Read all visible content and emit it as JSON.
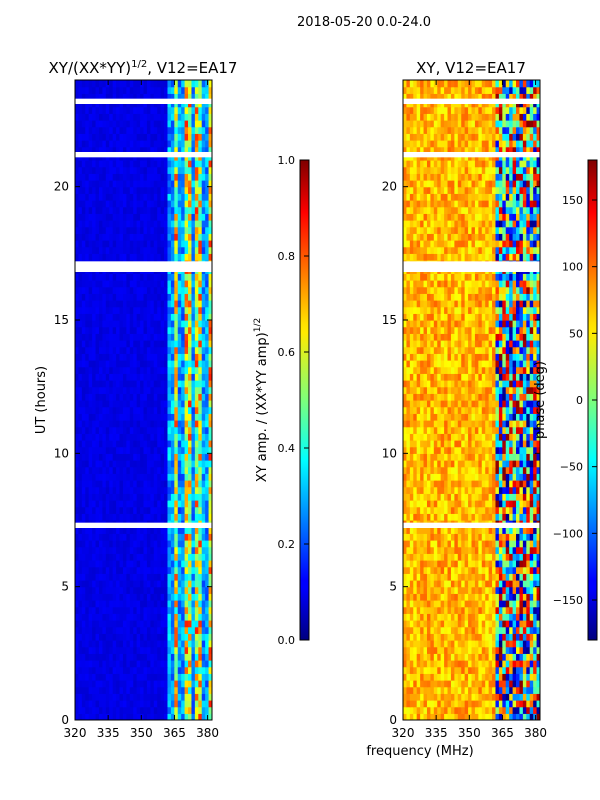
{
  "suptitle": "2018-05-20 0.0-24.0",
  "chart_data": [
    {
      "type": "heatmap",
      "title": "XY/(XX*YY)",
      "title_exponent": "1/2",
      "title_suffix": ", V12=EA17",
      "xlabel": "",
      "ylabel": "UT (hours)",
      "x_ticks": [
        "320",
        "335",
        "350",
        "365",
        "380"
      ],
      "x_tick_values": [
        320,
        335,
        350,
        365,
        380
      ],
      "y_ticks": [
        "0",
        "5",
        "10",
        "15",
        "20"
      ],
      "y_tick_values": [
        0,
        5,
        10,
        15,
        20
      ],
      "xlim": [
        320,
        382
      ],
      "ylim": [
        0,
        24
      ],
      "colorbar": {
        "label": "XY amp. / (XX*YY amp)",
        "label_exponent": "1/2",
        "ticks": [
          "0.0",
          "0.2",
          "0.4",
          "0.6",
          "0.8",
          "1.0"
        ],
        "tick_values": [
          0.0,
          0.2,
          0.4,
          0.6,
          0.8,
          1.0
        ],
        "range": [
          0.0,
          1.0
        ],
        "colormap": "jet"
      },
      "bright_band_mhz": [
        362,
        382
      ],
      "bright_subbands_mhz": [
        [
          364.5,
          367
        ],
        [
          369,
          372
        ],
        [
          375,
          378
        ],
        [
          380,
          382
        ]
      ],
      "gap_bands_ut": [
        [
          7.2,
          7.4
        ],
        [
          16.8,
          17.2
        ],
        [
          21.1,
          21.3
        ],
        [
          23.1,
          23.3
        ]
      ]
    },
    {
      "type": "heatmap",
      "title": "XY, V12=EA17",
      "xlabel": "frequency (MHz)",
      "ylabel": "",
      "x_ticks": [
        "320",
        "335",
        "350",
        "365",
        "380"
      ],
      "x_tick_values": [
        320,
        335,
        350,
        365,
        380
      ],
      "y_ticks": [
        "0",
        "5",
        "10",
        "15",
        "20"
      ],
      "y_tick_values": [
        0,
        5,
        10,
        15,
        20
      ],
      "xlim": [
        320,
        382
      ],
      "ylim": [
        0,
        24
      ],
      "colorbar": {
        "label": "phase (deg)",
        "ticks": [
          "−150",
          "−100",
          "−50",
          "0",
          "50",
          "100",
          "150"
        ],
        "tick_values": [
          -150,
          -100,
          -50,
          0,
          50,
          100,
          150
        ],
        "range": [
          -180,
          180
        ],
        "colormap": "jet"
      },
      "dominant_phase_deg": 70,
      "variable_band_mhz": [
        362,
        382
      ],
      "gap_bands_ut": [
        [
          7.2,
          7.4
        ],
        [
          16.8,
          17.2
        ],
        [
          21.1,
          21.3
        ],
        [
          23.1,
          23.3
        ]
      ]
    }
  ]
}
